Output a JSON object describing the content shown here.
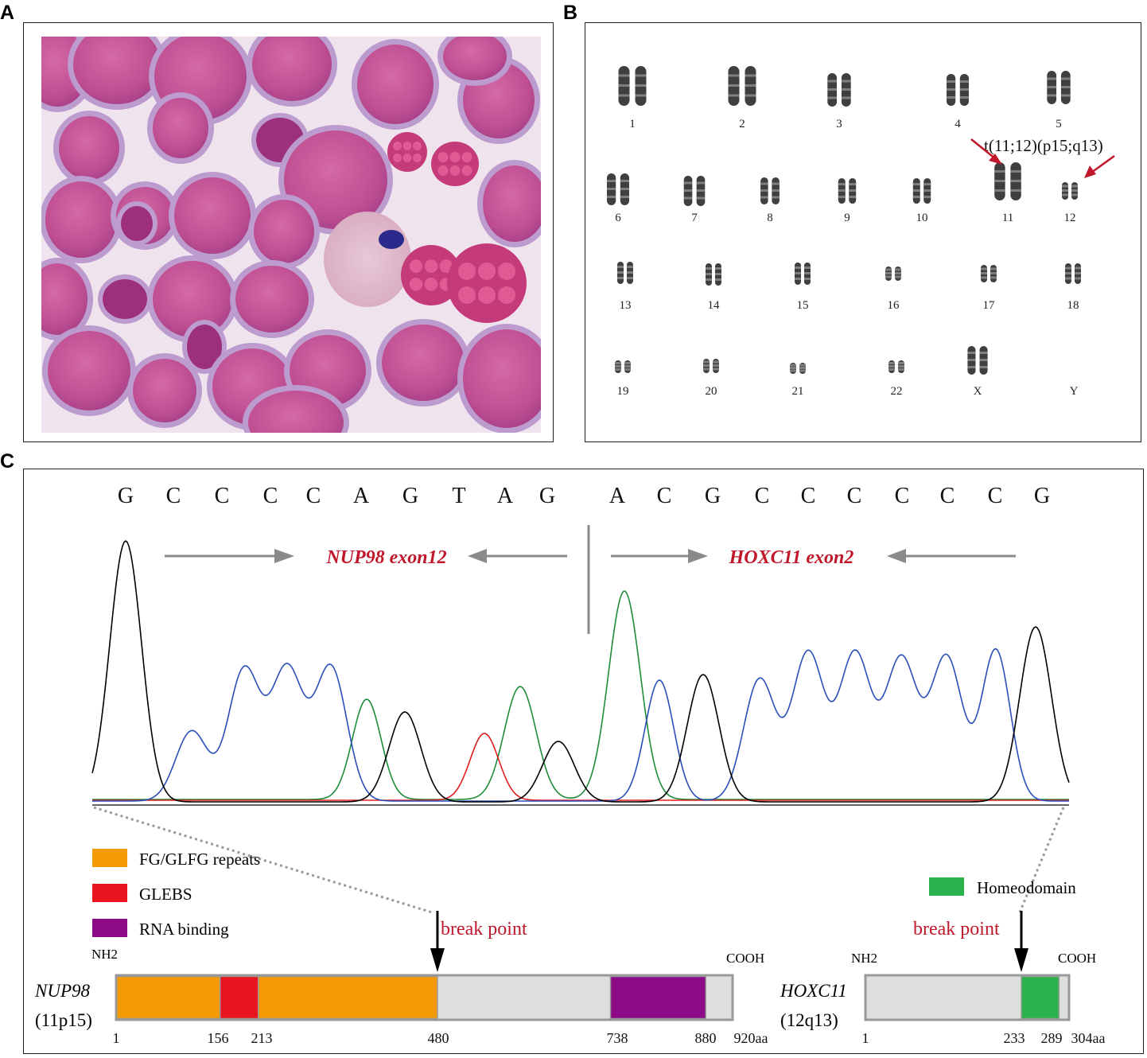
{
  "panels": {
    "a": {
      "letter": "A"
    },
    "b": {
      "letter": "B"
    },
    "c": {
      "letter": "C"
    }
  },
  "karyotype": {
    "annotation": "t(11;12)(p15;q13)",
    "labels": [
      "1",
      "2",
      "3",
      "4",
      "5",
      "6",
      "7",
      "8",
      "9",
      "10",
      "11",
      "12",
      "13",
      "14",
      "15",
      "16",
      "17",
      "18",
      "19",
      "20",
      "21",
      "22",
      "X",
      "Y"
    ],
    "arrow_color": "#c0172b"
  },
  "sequence": {
    "bases": [
      "G",
      "C",
      "C",
      "C",
      "C",
      "A",
      "G",
      "T",
      "A",
      "G",
      "A",
      "C",
      "G",
      "C",
      "C",
      "C",
      "C",
      "C",
      "C",
      "G"
    ],
    "left_gene_label": "NUP98 exon12",
    "right_gene_label": "HOXC11 exon2",
    "trace_colors": {
      "G": "#000000",
      "C": "#2a4fb8",
      "A": "#1f8c3a",
      "T": "#e01e1e"
    }
  },
  "legend": {
    "items": [
      {
        "label": "FG/GLFG repeats",
        "color": "#f39a05"
      },
      {
        "label": "GLEBS",
        "color": "#e8141f"
      },
      {
        "label": "RNA binding",
        "color": "#8e0b88"
      },
      {
        "label": "Homeodomain",
        "color": "#2bb24c"
      }
    ]
  },
  "nup98": {
    "name": "NUP98",
    "locus": "(11p15)",
    "nh2": "NH2",
    "cooh": "COOH",
    "break_label": "break point",
    "length": 920,
    "domains": [
      {
        "start": 1,
        "end": 156,
        "color": "#f39a05"
      },
      {
        "start": 156,
        "end": 213,
        "color": "#e8141f"
      },
      {
        "start": 213,
        "end": 480,
        "color": "#f39a05"
      },
      {
        "start": 738,
        "end": 880,
        "color": "#8e0b88"
      }
    ],
    "break_at": 480,
    "ticks": [
      "1",
      "156",
      "213",
      "480",
      "738",
      "880",
      "920aa"
    ]
  },
  "hoxc11": {
    "name": "HOXC11",
    "locus": "(12q13)",
    "nh2": "NH2",
    "cooh": "COOH",
    "break_label": "break point",
    "length": 304,
    "domains": [
      {
        "start": 233,
        "end": 289,
        "color": "#2bb24c"
      }
    ],
    "break_at": 233,
    "ticks": [
      "1",
      "233",
      "289",
      "304aa"
    ]
  }
}
